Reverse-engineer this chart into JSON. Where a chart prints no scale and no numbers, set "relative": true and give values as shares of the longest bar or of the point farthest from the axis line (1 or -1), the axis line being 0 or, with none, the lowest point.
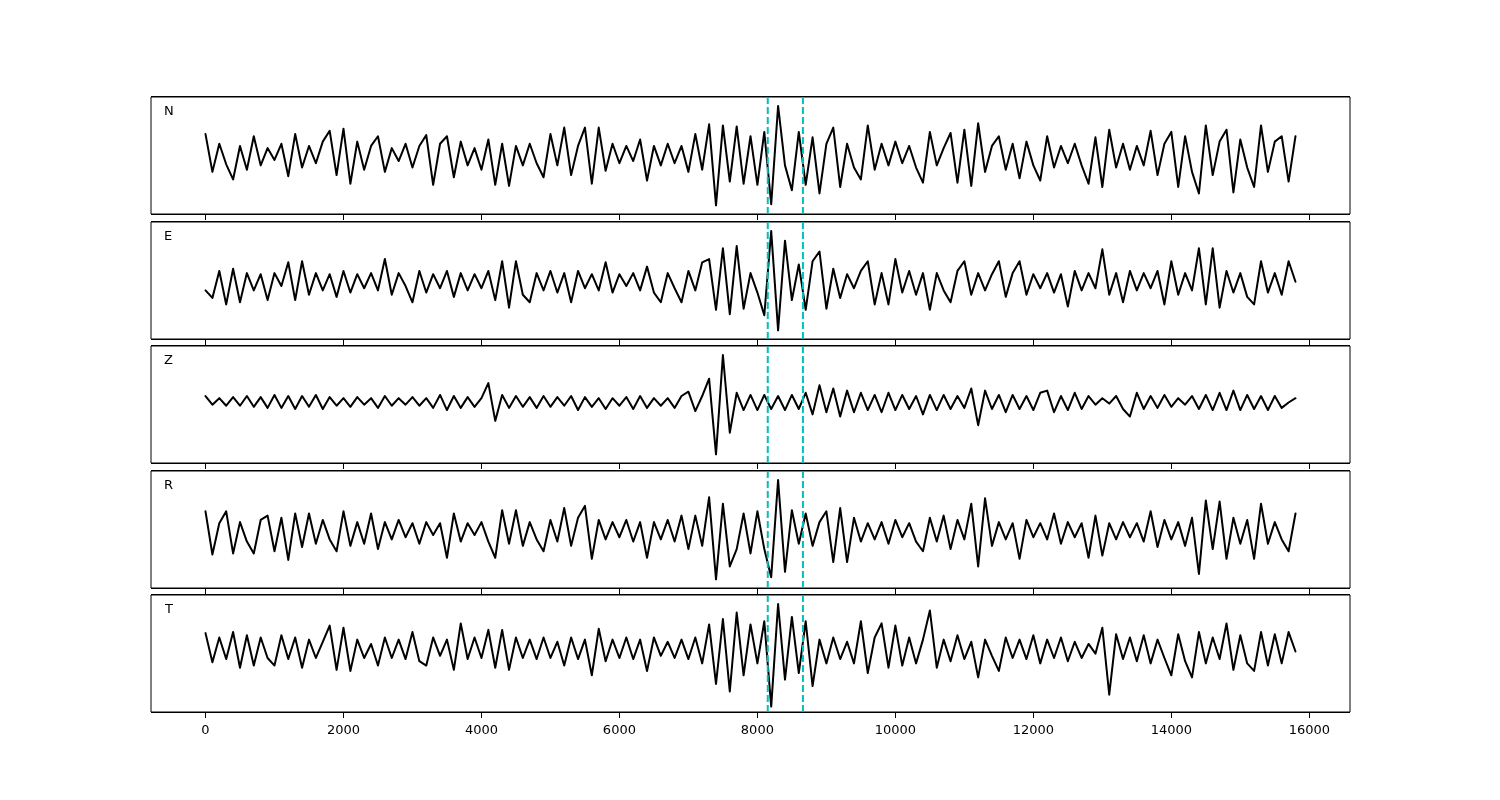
{
  "chart_data": [
    {
      "type": "line",
      "relative": true,
      "annotations": [
        "N"
      ],
      "xlim": [
        -790,
        16590
      ],
      "xticks": [
        0,
        2000,
        4000,
        6000,
        8000,
        10000,
        12000,
        14000,
        16000
      ],
      "tick_labels": false,
      "ref_lines": [
        {
          "axis": "x",
          "value": 8150,
          "color": "#00bfbf",
          "line_style": "dashed"
        },
        {
          "axis": "x",
          "value": 8660,
          "color": "#00bfbf",
          "line_style": "dashed"
        }
      ],
      "x": [
        0,
        100,
        200,
        300,
        400,
        500,
        600,
        700,
        800,
        900,
        1000,
        1100,
        1200,
        1300,
        1400,
        1500,
        1600,
        1700,
        1800,
        1900,
        2000,
        2100,
        2200,
        2300,
        2400,
        2500,
        2600,
        2700,
        2800,
        2900,
        3000,
        3100,
        3200,
        3300,
        3400,
        3500,
        3600,
        3700,
        3800,
        3900,
        4000,
        4100,
        4200,
        4300,
        4400,
        4500,
        4600,
        4700,
        4800,
        4900,
        5000,
        5100,
        5200,
        5300,
        5400,
        5500,
        5600,
        5700,
        5800,
        5900,
        6000,
        6100,
        6200,
        6300,
        6400,
        6500,
        6600,
        6700,
        6800,
        6900,
        7000,
        7100,
        7200,
        7300,
        7400,
        7500,
        7600,
        7700,
        7800,
        7900,
        8000,
        8100,
        8200,
        8300,
        8400,
        8500,
        8600,
        8700,
        8800,
        8900,
        9000,
        9100,
        9200,
        9300,
        9400,
        9500,
        9600,
        9700,
        9800,
        9900,
        10000,
        10100,
        10200,
        10300,
        10400,
        10500,
        10600,
        10700,
        10800,
        10900,
        11000,
        11100,
        11200,
        11300,
        11400,
        11500,
        11600,
        11700,
        11800,
        11900,
        12000,
        12100,
        12200,
        12300,
        12400,
        12500,
        12600,
        12700,
        12800,
        12900,
        13000,
        13100,
        13200,
        13300,
        13400,
        13500,
        13600,
        13700,
        13800,
        13900,
        14000,
        14100,
        14200,
        14300,
        14400,
        14500,
        14600,
        14700,
        14800,
        14900,
        15000,
        15100,
        15200,
        15300,
        15400,
        15500,
        15600,
        15700,
        15800
      ],
      "series": [
        {
          "color": "#000000",
          "values": [
            0.74,
            0.39,
            0.65,
            0.46,
            0.32,
            0.63,
            0.41,
            0.72,
            0.45,
            0.61,
            0.5,
            0.65,
            0.35,
            0.74,
            0.43,
            0.63,
            0.47,
            0.67,
            0.77,
            0.36,
            0.79,
            0.28,
            0.67,
            0.41,
            0.63,
            0.72,
            0.39,
            0.61,
            0.49,
            0.65,
            0.43,
            0.63,
            0.73,
            0.27,
            0.65,
            0.72,
            0.34,
            0.67,
            0.45,
            0.61,
            0.41,
            0.69,
            0.27,
            0.65,
            0.26,
            0.63,
            0.45,
            0.65,
            0.47,
            0.34,
            0.74,
            0.45,
            0.8,
            0.36,
            0.63,
            0.8,
            0.28,
            0.8,
            0.4,
            0.65,
            0.47,
            0.63,
            0.49,
            0.69,
            0.31,
            0.63,
            0.45,
            0.65,
            0.47,
            0.63,
            0.39,
            0.74,
            0.41,
            0.83,
            0.08,
            0.82,
            0.3,
            0.81,
            0.28,
            0.72,
            0.27,
            0.76,
            0.09,
            1.0,
            0.45,
            0.22,
            0.76,
            0.27,
            0.71,
            0.19,
            0.65,
            0.8,
            0.25,
            0.65,
            0.43,
            0.32,
            0.82,
            0.41,
            0.65,
            0.45,
            0.67,
            0.47,
            0.63,
            0.43,
            0.29,
            0.76,
            0.45,
            0.61,
            0.75,
            0.29,
            0.78,
            0.26,
            0.84,
            0.39,
            0.63,
            0.72,
            0.41,
            0.65,
            0.33,
            0.67,
            0.45,
            0.31,
            0.72,
            0.43,
            0.63,
            0.47,
            0.65,
            0.45,
            0.28,
            0.71,
            0.25,
            0.78,
            0.43,
            0.65,
            0.41,
            0.63,
            0.45,
            0.77,
            0.36,
            0.65,
            0.76,
            0.25,
            0.72,
            0.39,
            0.19,
            0.82,
            0.36,
            0.67,
            0.78,
            0.2,
            0.69,
            0.43,
            0.25,
            0.82,
            0.39,
            0.67,
            0.72,
            0.3,
            0.72
          ]
        }
      ]
    },
    {
      "type": "line",
      "relative": true,
      "annotations": [
        "E"
      ],
      "xlim": [
        -790,
        16590
      ],
      "xticks": [
        0,
        2000,
        4000,
        6000,
        8000,
        10000,
        12000,
        14000,
        16000
      ],
      "tick_labels": false,
      "ref_lines": [
        {
          "axis": "x",
          "value": 8150,
          "color": "#00bfbf",
          "line_style": "dashed"
        },
        {
          "axis": "x",
          "value": 8660,
          "color": "#00bfbf",
          "line_style": "dashed"
        }
      ],
      "x": [
        0,
        100,
        200,
        300,
        400,
        500,
        600,
        700,
        800,
        900,
        1000,
        1100,
        1200,
        1300,
        1400,
        1500,
        1600,
        1700,
        1800,
        1900,
        2000,
        2100,
        2200,
        2300,
        2400,
        2500,
        2600,
        2700,
        2800,
        2900,
        3000,
        3100,
        3200,
        3300,
        3400,
        3500,
        3600,
        3700,
        3800,
        3900,
        4000,
        4100,
        4200,
        4300,
        4400,
        4500,
        4600,
        4700,
        4800,
        4900,
        5000,
        5100,
        5200,
        5300,
        5400,
        5500,
        5600,
        5700,
        5800,
        5900,
        6000,
        6100,
        6200,
        6300,
        6400,
        6500,
        6600,
        6700,
        6800,
        6900,
        7000,
        7100,
        7200,
        7300,
        7400,
        7500,
        7600,
        7700,
        7800,
        7900,
        8000,
        8100,
        8200,
        8300,
        8400,
        8500,
        8600,
        8700,
        8800,
        8900,
        9000,
        9100,
        9200,
        9300,
        9400,
        9500,
        9600,
        9700,
        9800,
        9900,
        10000,
        10100,
        10200,
        10300,
        10400,
        10500,
        10600,
        10700,
        10800,
        10900,
        11000,
        11100,
        11200,
        11300,
        11400,
        11500,
        11600,
        11700,
        11800,
        11900,
        12000,
        12100,
        12200,
        12300,
        12400,
        12500,
        12600,
        12700,
        12800,
        12900,
        13000,
        13100,
        13200,
        13300,
        13400,
        13500,
        13600,
        13700,
        13800,
        13900,
        14000,
        14100,
        14200,
        14300,
        14400,
        14500,
        14600,
        14700,
        14800,
        14900,
        15000,
        15100,
        15200,
        15300,
        15400,
        15500,
        15600,
        15700,
        15800
      ],
      "series": [
        {
          "color": "#000000",
          "values": [
            0.45,
            0.38,
            0.63,
            0.32,
            0.65,
            0.34,
            0.61,
            0.45,
            0.6,
            0.36,
            0.61,
            0.49,
            0.71,
            0.36,
            0.72,
            0.41,
            0.61,
            0.45,
            0.6,
            0.39,
            0.63,
            0.43,
            0.6,
            0.47,
            0.61,
            0.45,
            0.74,
            0.41,
            0.61,
            0.49,
            0.34,
            0.63,
            0.43,
            0.6,
            0.47,
            0.63,
            0.39,
            0.61,
            0.45,
            0.6,
            0.47,
            0.63,
            0.36,
            0.72,
            0.29,
            0.72,
            0.41,
            0.34,
            0.61,
            0.45,
            0.63,
            0.43,
            0.61,
            0.34,
            0.63,
            0.47,
            0.6,
            0.45,
            0.71,
            0.43,
            0.6,
            0.49,
            0.61,
            0.45,
            0.67,
            0.43,
            0.34,
            0.61,
            0.47,
            0.34,
            0.63,
            0.45,
            0.71,
            0.74,
            0.27,
            0.84,
            0.23,
            0.86,
            0.28,
            0.61,
            0.43,
            0.22,
            1.0,
            0.08,
            0.91,
            0.36,
            0.69,
            0.27,
            0.72,
            0.81,
            0.28,
            0.65,
            0.38,
            0.6,
            0.47,
            0.63,
            0.72,
            0.32,
            0.61,
            0.32,
            0.74,
            0.43,
            0.63,
            0.41,
            0.61,
            0.27,
            0.61,
            0.45,
            0.34,
            0.63,
            0.72,
            0.41,
            0.61,
            0.45,
            0.6,
            0.72,
            0.39,
            0.61,
            0.72,
            0.41,
            0.6,
            0.47,
            0.61,
            0.43,
            0.6,
            0.3,
            0.63,
            0.45,
            0.61,
            0.47,
            0.83,
            0.41,
            0.61,
            0.34,
            0.63,
            0.45,
            0.61,
            0.47,
            0.63,
            0.32,
            0.72,
            0.41,
            0.61,
            0.45,
            0.84,
            0.32,
            0.84,
            0.29,
            0.63,
            0.43,
            0.61,
            0.39,
            0.32,
            0.72,
            0.43,
            0.61,
            0.41,
            0.72,
            0.53
          ]
        }
      ]
    },
    {
      "type": "line",
      "relative": true,
      "annotations": [
        "Z"
      ],
      "xlim": [
        -790,
        16590
      ],
      "xticks": [
        0,
        2000,
        4000,
        6000,
        8000,
        10000,
        12000,
        14000,
        16000
      ],
      "tick_labels": false,
      "ref_lines": [
        {
          "axis": "x",
          "value": 8150,
          "color": "#00bfbf",
          "line_style": "dashed"
        },
        {
          "axis": "x",
          "value": 8660,
          "color": "#00bfbf",
          "line_style": "dashed"
        }
      ],
      "x": [
        0,
        100,
        200,
        300,
        400,
        500,
        600,
        700,
        800,
        900,
        1000,
        1100,
        1200,
        1300,
        1400,
        1500,
        1600,
        1700,
        1800,
        1900,
        2000,
        2100,
        2200,
        2300,
        2400,
        2500,
        2600,
        2700,
        2800,
        2900,
        3000,
        3100,
        3200,
        3300,
        3400,
        3500,
        3600,
        3700,
        3800,
        3900,
        4000,
        4100,
        4200,
        4300,
        4400,
        4500,
        4600,
        4700,
        4800,
        4900,
        5000,
        5100,
        5200,
        5300,
        5400,
        5500,
        5600,
        5700,
        5800,
        5900,
        6000,
        6100,
        6200,
        6300,
        6400,
        6500,
        6600,
        6700,
        6800,
        6900,
        7000,
        7100,
        7200,
        7300,
        7400,
        7500,
        7600,
        7700,
        7800,
        7900,
        8000,
        8100,
        8200,
        8300,
        8400,
        8500,
        8600,
        8700,
        8800,
        8900,
        9000,
        9100,
        9200,
        9300,
        9400,
        9500,
        9600,
        9700,
        9800,
        9900,
        10000,
        10100,
        10200,
        10300,
        10400,
        10500,
        10600,
        10700,
        10800,
        10900,
        11000,
        11100,
        11200,
        11300,
        11400,
        11500,
        11600,
        11700,
        11800,
        11900,
        12000,
        12100,
        12200,
        12300,
        12400,
        12500,
        12600,
        12700,
        12800,
        12900,
        13000,
        13100,
        13200,
        13300,
        13400,
        13500,
        13600,
        13700,
        13800,
        13900,
        14000,
        14100,
        14200,
        14300,
        14400,
        14500,
        14600,
        14700,
        14800,
        14900,
        15000,
        15100,
        15200,
        15300,
        15400,
        15500,
        15600,
        15700,
        15800
      ],
      "series": [
        {
          "color": "#000000",
          "values": [
            0.62,
            0.54,
            0.6,
            0.53,
            0.61,
            0.53,
            0.62,
            0.52,
            0.61,
            0.51,
            0.63,
            0.51,
            0.62,
            0.5,
            0.62,
            0.52,
            0.63,
            0.5,
            0.61,
            0.53,
            0.6,
            0.52,
            0.61,
            0.54,
            0.6,
            0.51,
            0.62,
            0.53,
            0.6,
            0.54,
            0.61,
            0.53,
            0.6,
            0.51,
            0.63,
            0.49,
            0.62,
            0.51,
            0.61,
            0.52,
            0.6,
            0.74,
            0.39,
            0.63,
            0.51,
            0.62,
            0.52,
            0.61,
            0.51,
            0.62,
            0.52,
            0.61,
            0.53,
            0.62,
            0.49,
            0.61,
            0.52,
            0.6,
            0.5,
            0.6,
            0.53,
            0.61,
            0.5,
            0.62,
            0.51,
            0.6,
            0.53,
            0.6,
            0.51,
            0.62,
            0.66,
            0.48,
            0.62,
            0.78,
            0.08,
            1.0,
            0.28,
            0.65,
            0.49,
            0.63,
            0.49,
            0.63,
            0.5,
            0.62,
            0.49,
            0.63,
            0.5,
            0.65,
            0.45,
            0.72,
            0.47,
            0.69,
            0.43,
            0.67,
            0.47,
            0.65,
            0.49,
            0.63,
            0.47,
            0.65,
            0.49,
            0.63,
            0.5,
            0.62,
            0.45,
            0.63,
            0.49,
            0.63,
            0.5,
            0.62,
            0.51,
            0.69,
            0.35,
            0.67,
            0.5,
            0.63,
            0.47,
            0.63,
            0.5,
            0.62,
            0.49,
            0.65,
            0.67,
            0.47,
            0.62,
            0.49,
            0.65,
            0.5,
            0.62,
            0.54,
            0.6,
            0.55,
            0.62,
            0.5,
            0.43,
            0.65,
            0.5,
            0.62,
            0.51,
            0.63,
            0.52,
            0.6,
            0.54,
            0.62,
            0.5,
            0.63,
            0.49,
            0.65,
            0.49,
            0.67,
            0.49,
            0.63,
            0.5,
            0.62,
            0.49,
            0.62,
            0.51,
            0.56,
            0.6
          ]
        }
      ]
    },
    {
      "type": "line",
      "relative": true,
      "annotations": [
        "R"
      ],
      "xlim": [
        -790,
        16590
      ],
      "xticks": [
        0,
        2000,
        4000,
        6000,
        8000,
        10000,
        12000,
        14000,
        16000
      ],
      "tick_labels": false,
      "ref_lines": [
        {
          "axis": "x",
          "value": 8150,
          "color": "#00bfbf",
          "line_style": "dashed"
        },
        {
          "axis": "x",
          "value": 8660,
          "color": "#00bfbf",
          "line_style": "dashed"
        }
      ],
      "x": [
        0,
        100,
        200,
        300,
        400,
        500,
        600,
        700,
        800,
        900,
        1000,
        1100,
        1200,
        1300,
        1400,
        1500,
        1600,
        1700,
        1800,
        1900,
        2000,
        2100,
        2200,
        2300,
        2400,
        2500,
        2600,
        2700,
        2800,
        2900,
        3000,
        3100,
        3200,
        3300,
        3400,
        3500,
        3600,
        3700,
        3800,
        3900,
        4000,
        4100,
        4200,
        4300,
        4400,
        4500,
        4600,
        4700,
        4800,
        4900,
        5000,
        5100,
        5200,
        5300,
        5400,
        5500,
        5600,
        5700,
        5800,
        5900,
        6000,
        6100,
        6200,
        6300,
        6400,
        6500,
        6600,
        6700,
        6800,
        6900,
        7000,
        7100,
        7200,
        7300,
        7400,
        7500,
        7600,
        7700,
        7800,
        7900,
        8000,
        8100,
        8200,
        8300,
        8400,
        8500,
        8600,
        8700,
        8800,
        8900,
        9000,
        9100,
        9200,
        9300,
        9400,
        9500,
        9600,
        9700,
        9800,
        9900,
        10000,
        10100,
        10200,
        10300,
        10400,
        10500,
        10600,
        10700,
        10800,
        10900,
        11000,
        11100,
        11200,
        11300,
        11400,
        11500,
        11600,
        11700,
        11800,
        11900,
        12000,
        12100,
        12200,
        12300,
        12400,
        12500,
        12600,
        12700,
        12800,
        12900,
        13000,
        13100,
        13200,
        13300,
        13400,
        13500,
        13600,
        13700,
        13800,
        13900,
        14000,
        14100,
        14200,
        14300,
        14400,
        14500,
        14600,
        14700,
        14800,
        14900,
        15000,
        15100,
        15200,
        15300,
        15400,
        15500,
        15600,
        15700,
        15800
      ],
      "series": [
        {
          "color": "#000000",
          "values": [
            0.71,
            0.31,
            0.6,
            0.71,
            0.32,
            0.61,
            0.43,
            0.32,
            0.63,
            0.67,
            0.34,
            0.65,
            0.26,
            0.69,
            0.38,
            0.69,
            0.41,
            0.63,
            0.45,
            0.34,
            0.71,
            0.39,
            0.61,
            0.41,
            0.69,
            0.36,
            0.61,
            0.45,
            0.63,
            0.47,
            0.6,
            0.41,
            0.61,
            0.49,
            0.6,
            0.28,
            0.69,
            0.43,
            0.6,
            0.49,
            0.61,
            0.43,
            0.28,
            0.72,
            0.41,
            0.72,
            0.39,
            0.61,
            0.45,
            0.34,
            0.63,
            0.43,
            0.74,
            0.39,
            0.65,
            0.76,
            0.27,
            0.63,
            0.45,
            0.61,
            0.47,
            0.63,
            0.43,
            0.61,
            0.28,
            0.61,
            0.45,
            0.63,
            0.43,
            0.67,
            0.36,
            0.67,
            0.39,
            0.84,
            0.08,
            0.78,
            0.2,
            0.36,
            0.69,
            0.32,
            0.71,
            0.36,
            0.1,
            1.0,
            0.15,
            0.72,
            0.41,
            0.69,
            0.39,
            0.61,
            0.71,
            0.24,
            0.74,
            0.24,
            0.65,
            0.43,
            0.6,
            0.45,
            0.61,
            0.41,
            0.63,
            0.47,
            0.6,
            0.43,
            0.34,
            0.65,
            0.43,
            0.67,
            0.36,
            0.63,
            0.45,
            0.78,
            0.2,
            0.83,
            0.39,
            0.61,
            0.45,
            0.6,
            0.27,
            0.63,
            0.47,
            0.6,
            0.45,
            0.69,
            0.41,
            0.61,
            0.47,
            0.6,
            0.28,
            0.67,
            0.3,
            0.6,
            0.45,
            0.61,
            0.47,
            0.6,
            0.43,
            0.71,
            0.38,
            0.63,
            0.45,
            0.61,
            0.39,
            0.65,
            0.13,
            0.81,
            0.36,
            0.8,
            0.27,
            0.65,
            0.41,
            0.63,
            0.27,
            0.78,
            0.41,
            0.61,
            0.45,
            0.34,
            0.69
          ]
        }
      ]
    },
    {
      "type": "line",
      "relative": true,
      "annotations": [
        "T"
      ],
      "xlim": [
        -790,
        16590
      ],
      "xticks": [
        0,
        2000,
        4000,
        6000,
        8000,
        10000,
        12000,
        14000,
        16000
      ],
      "ref_lines": [
        {
          "axis": "x",
          "value": 8150,
          "color": "#00bfbf",
          "line_style": "dashed"
        },
        {
          "axis": "x",
          "value": 8660,
          "color": "#00bfbf",
          "line_style": "dashed"
        }
      ],
      "x": [
        0,
        100,
        200,
        300,
        400,
        500,
        600,
        700,
        800,
        900,
        1000,
        1100,
        1200,
        1300,
        1400,
        1500,
        1600,
        1700,
        1800,
        1900,
        2000,
        2100,
        2200,
        2300,
        2400,
        2500,
        2600,
        2700,
        2800,
        2900,
        3000,
        3100,
        3200,
        3300,
        3400,
        3500,
        3600,
        3700,
        3800,
        3900,
        4000,
        4100,
        4200,
        4300,
        4400,
        4500,
        4600,
        4700,
        4800,
        4900,
        5000,
        5100,
        5200,
        5300,
        5400,
        5500,
        5600,
        5700,
        5800,
        5900,
        6000,
        6100,
        6200,
        6300,
        6400,
        6500,
        6600,
        6700,
        6800,
        6900,
        7000,
        7100,
        7200,
        7300,
        7400,
        7500,
        7600,
        7700,
        7800,
        7900,
        8000,
        8100,
        8200,
        8300,
        8400,
        8500,
        8600,
        8700,
        8800,
        8900,
        9000,
        9100,
        9200,
        9300,
        9400,
        9500,
        9600,
        9700,
        9800,
        9900,
        10000,
        10100,
        10200,
        10300,
        10400,
        10500,
        10600,
        10700,
        10800,
        10900,
        11000,
        11100,
        11200,
        11300,
        11400,
        11500,
        11600,
        11700,
        11800,
        11900,
        12000,
        12100,
        12200,
        12300,
        12400,
        12500,
        12600,
        12700,
        12800,
        12900,
        13000,
        13100,
        13200,
        13300,
        13400,
        13500,
        13600,
        13700,
        13800,
        13900,
        14000,
        14100,
        14200,
        14300,
        14400,
        14500,
        14600,
        14700,
        14800,
        14900,
        15000,
        15100,
        15200,
        15300,
        15400,
        15500,
        15600,
        15700,
        15800
      ],
      "series": [
        {
          "color": "#000000",
          "values": [
            0.73,
            0.46,
            0.69,
            0.49,
            0.74,
            0.41,
            0.71,
            0.43,
            0.69,
            0.5,
            0.43,
            0.71,
            0.49,
            0.69,
            0.41,
            0.67,
            0.5,
            0.65,
            0.8,
            0.39,
            0.78,
            0.38,
            0.67,
            0.5,
            0.63,
            0.43,
            0.69,
            0.5,
            0.67,
            0.49,
            0.74,
            0.47,
            0.43,
            0.69,
            0.52,
            0.67,
            0.39,
            0.82,
            0.49,
            0.69,
            0.5,
            0.76,
            0.41,
            0.76,
            0.39,
            0.69,
            0.5,
            0.67,
            0.49,
            0.69,
            0.5,
            0.65,
            0.43,
            0.69,
            0.49,
            0.67,
            0.34,
            0.77,
            0.47,
            0.67,
            0.5,
            0.69,
            0.49,
            0.67,
            0.38,
            0.69,
            0.52,
            0.65,
            0.5,
            0.67,
            0.49,
            0.69,
            0.45,
            0.81,
            0.26,
            0.86,
            0.19,
            0.92,
            0.34,
            0.81,
            0.45,
            0.84,
            0.05,
            1.0,
            0.3,
            0.88,
            0.36,
            0.84,
            0.24,
            0.67,
            0.45,
            0.69,
            0.49,
            0.65,
            0.45,
            0.84,
            0.36,
            0.69,
            0.82,
            0.41,
            0.8,
            0.43,
            0.69,
            0.45,
            0.67,
            0.94,
            0.41,
            0.67,
            0.47,
            0.71,
            0.49,
            0.65,
            0.32,
            0.67,
            0.52,
            0.38,
            0.69,
            0.5,
            0.67,
            0.49,
            0.71,
            0.45,
            0.67,
            0.5,
            0.69,
            0.47,
            0.65,
            0.5,
            0.63,
            0.54,
            0.78,
            0.16,
            0.72,
            0.49,
            0.69,
            0.47,
            0.71,
            0.45,
            0.67,
            0.5,
            0.34,
            0.72,
            0.47,
            0.32,
            0.74,
            0.45,
            0.69,
            0.49,
            0.82,
            0.39,
            0.71,
            0.45,
            0.38,
            0.74,
            0.43,
            0.72,
            0.45,
            0.74,
            0.56
          ]
        }
      ]
    }
  ]
}
